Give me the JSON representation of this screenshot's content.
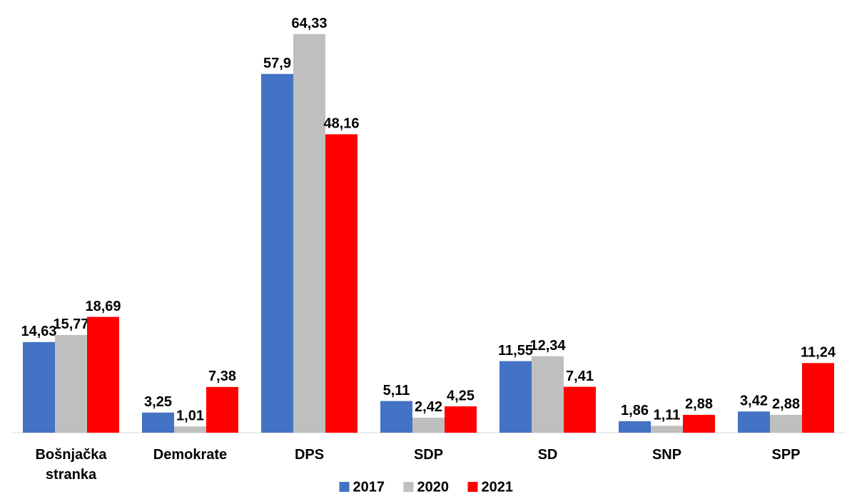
{
  "chart_data": {
    "type": "bar",
    "categories": [
      "Bošnjačka stranka",
      "Demokrate",
      "DPS",
      "SDP",
      "SD",
      "SNP",
      "SPP"
    ],
    "series": [
      {
        "name": "2017",
        "color": "#4472c4",
        "values": [
          14.63,
          3.25,
          57.9,
          5.11,
          11.55,
          1.86,
          3.42
        ],
        "value_labels": [
          "14,63",
          "3,25",
          "57,9",
          "5,11",
          "11,55",
          "1,86",
          "3,42"
        ]
      },
      {
        "name": "2020",
        "color": "#bfbfbf",
        "values": [
          15.77,
          1.01,
          64.33,
          2.42,
          12.34,
          1.11,
          2.88
        ],
        "value_labels": [
          "15,77",
          "1,01",
          "64,33",
          "2,42",
          "12,34",
          "1,11",
          "2,88"
        ]
      },
      {
        "name": "2021",
        "color": "#ff0000",
        "values": [
          18.69,
          7.38,
          48.16,
          4.25,
          7.41,
          2.88,
          11.24
        ],
        "value_labels": [
          "18,69",
          "7,38",
          "48,16",
          "4,25",
          "7,41",
          "2,88",
          "11,24"
        ]
      }
    ],
    "ylim": [
      0,
      65
    ],
    "legend": "bottom"
  }
}
